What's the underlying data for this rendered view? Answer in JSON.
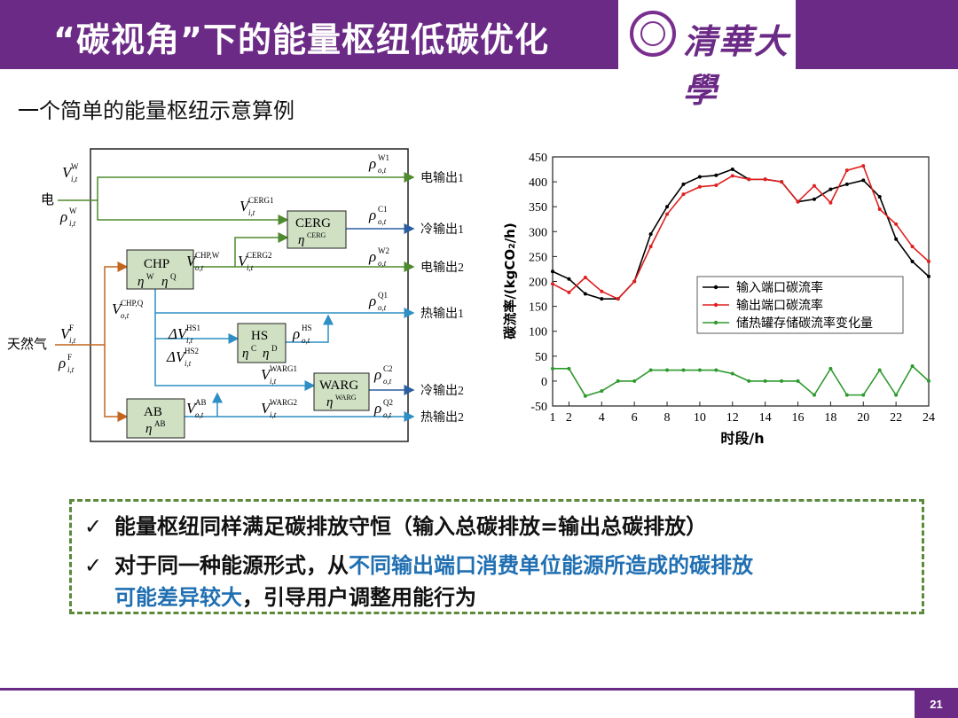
{
  "header": {
    "title": "“碳视角”下的能量枢纽低碳优化",
    "logo_text": "清華大學",
    "accent_color": "#6b2a86"
  },
  "subtitle": "一个简单的能量枢纽示意算例",
  "diagram": {
    "inputs": {
      "electricity": "电",
      "gas": "天然气"
    },
    "outputs": [
      "电输出1",
      "冷输出1",
      "电输出2",
      "热输出1",
      "冷输出2",
      "热输出2"
    ],
    "devices": {
      "chp": {
        "name": "CHP",
        "eff": "η",
        "eff_sup1": "W",
        "eff_sup2": "Q"
      },
      "cerg": {
        "name": "CERG",
        "eff": "η",
        "eff_sup": "CERG"
      },
      "hs": {
        "name": "HS",
        "eff": "η",
        "eff_sup1": "C",
        "eff_sup2": "D"
      },
      "warg": {
        "name": "WARG",
        "eff": "η",
        "eff_sup": "WARG"
      },
      "ab": {
        "name": "AB",
        "eff": "η",
        "eff_sup": "AB"
      }
    },
    "symbols": {
      "v_iw": {
        "base": "V",
        "sup": "W",
        "sub": "i,t"
      },
      "rho_iw": {
        "base": "ρ",
        "sup": "W",
        "sub": "i,t"
      },
      "v_if": {
        "base": "V",
        "sup": "F",
        "sub": "i,t"
      },
      "rho_if": {
        "base": "ρ",
        "sup": "F",
        "sub": "i,t"
      },
      "rho_ow1": {
        "base": "ρ",
        "sup": "W1",
        "sub": "o,t"
      },
      "v_cerg1": {
        "base": "V",
        "sup": "CERG1",
        "sub": "i,t"
      },
      "rho_oc1": {
        "base": "ρ",
        "sup": "C1",
        "sub": "o,t"
      },
      "v_chpw": {
        "base": "V",
        "sup": "CHP,W",
        "sub": "o,t"
      },
      "v_cerg2": {
        "base": "V",
        "sup": "CERG2",
        "sub": "i,t"
      },
      "rho_ow2": {
        "base": "ρ",
        "sup": "W2",
        "sub": "o,t"
      },
      "v_chpq": {
        "base": "V",
        "sup": "CHP,Q",
        "sub": "o,t"
      },
      "rho_oq1": {
        "base": "ρ",
        "sup": "Q1",
        "sub": "o,t"
      },
      "dv_hs1": {
        "base": "ΔV",
        "sup": "HS1",
        "sub": "i,t"
      },
      "dv_hs2": {
        "base": "ΔV",
        "sup": "HS2",
        "sub": "i,t"
      },
      "rho_ohs": {
        "base": "ρ",
        "sup": "HS",
        "sub": "o,t"
      },
      "v_warg1": {
        "base": "V",
        "sup": "WARG1",
        "sub": "i,t"
      },
      "rho_oc2": {
        "base": "ρ",
        "sup": "C2",
        "sub": "o,t"
      },
      "v_ab": {
        "base": "V",
        "sup": "AB",
        "sub": "o,t"
      },
      "v_warg2": {
        "base": "V",
        "sup": "WARG2",
        "sub": "i,t"
      },
      "rho_oq2": {
        "base": "ρ",
        "sup": "Q2",
        "sub": "o,t"
      }
    },
    "colors": {
      "electric": "#4e8a2e",
      "cool": "#2c5fa0",
      "heat": "#2d8fc4",
      "gas": "#c2661f",
      "box": "#cfe0c3"
    }
  },
  "chart_data": {
    "type": "line",
    "x": [
      1,
      2,
      3,
      4,
      5,
      6,
      7,
      8,
      9,
      10,
      11,
      12,
      13,
      14,
      15,
      16,
      17,
      18,
      19,
      20,
      21,
      22,
      23,
      24
    ],
    "xticks": [
      1,
      2,
      4,
      6,
      8,
      10,
      12,
      14,
      16,
      18,
      20,
      22,
      24
    ],
    "yticks": [
      -50,
      0,
      50,
      100,
      150,
      200,
      250,
      300,
      350,
      400,
      450
    ],
    "ylim": [
      -50,
      450
    ],
    "xlim": [
      1,
      24
    ],
    "xlabel": "时段/h",
    "ylabel": "碳流率/(kgCO₂/h)",
    "legend_position": "center-right",
    "series": [
      {
        "name": "输入端口碳流率",
        "color": "#000000",
        "values": [
          220,
          205,
          175,
          165,
          165,
          200,
          295,
          350,
          395,
          410,
          413,
          425,
          405,
          405,
          400,
          360,
          365,
          385,
          395,
          403,
          370,
          285,
          240,
          210
        ]
      },
      {
        "name": "输出端口碳流率",
        "color": "#e02020",
        "values": [
          195,
          178,
          208,
          180,
          165,
          200,
          270,
          335,
          375,
          390,
          393,
          412,
          405,
          405,
          400,
          360,
          392,
          358,
          423,
          432,
          345,
          315,
          270,
          240
        ]
      },
      {
        "name": "储热罐存储碳流率变化量",
        "color": "#2e9a2e",
        "values": [
          25,
          25,
          -30,
          -20,
          0,
          0,
          22,
          22,
          22,
          22,
          22,
          15,
          0,
          0,
          0,
          0,
          -28,
          25,
          -28,
          -28,
          22,
          -28,
          30,
          0
        ]
      }
    ]
  },
  "conclusion": {
    "check_icon": "✓",
    "point1": "能量枢纽同样满足碳排放守恒（输入总碳排放=输出总碳排放）",
    "point2_prefix": "对于同一种能源形式，从",
    "point2_highlight_a": "不同输出端口消费单位能源所造成的碳排放",
    "point2_highlight_b": "可能差异较大",
    "point2_suffix": "，引导用户调整用能行为",
    "border_color": "#5a8a3a",
    "highlight_color": "#1f6fb2"
  },
  "footer": {
    "page_number": "21"
  }
}
